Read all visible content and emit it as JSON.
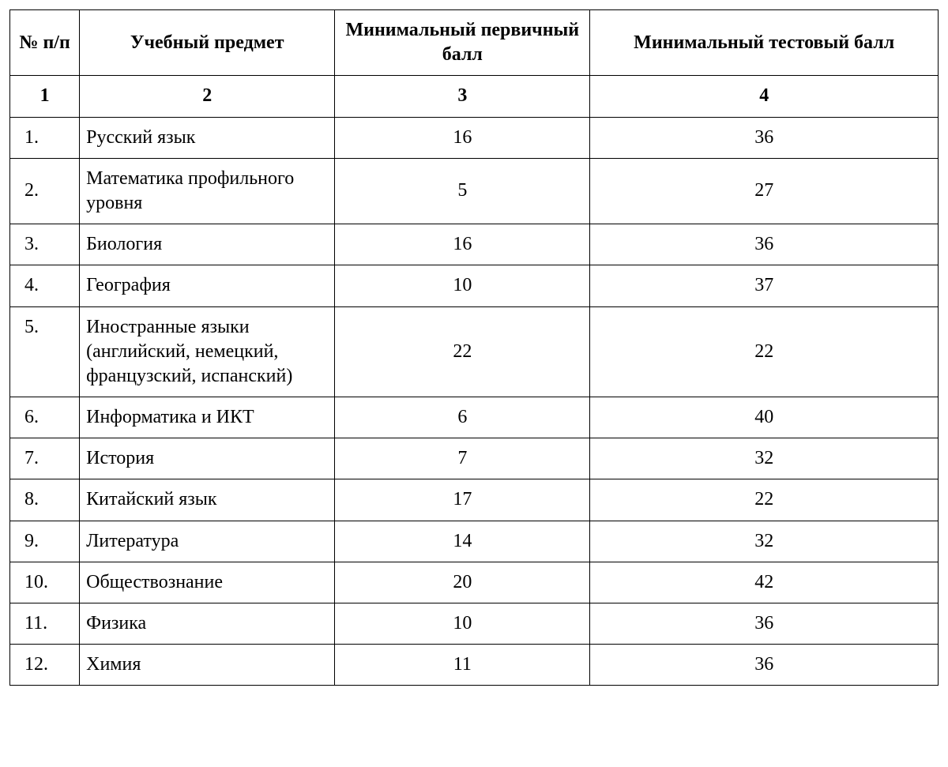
{
  "table": {
    "type": "table",
    "background_color": "#ffffff",
    "border_color": "#000000",
    "text_color": "#000000",
    "font_family": "Times New Roman",
    "header_fontsize_pt": 18,
    "body_fontsize_pt": 18,
    "columns": [
      {
        "key": "num",
        "label": "№ п/п",
        "align": "left",
        "width_pct": 7.5
      },
      {
        "key": "subject",
        "label": "Учебный предмет",
        "align": "left",
        "width_pct": 27.5
      },
      {
        "key": "primary_score",
        "label": "Минимальный первичный балл",
        "align": "center",
        "width_pct": 27.5
      },
      {
        "key": "test_score",
        "label": "Минимальный тестовый балл",
        "align": "center",
        "width_pct": 37.5
      }
    ],
    "subheader": [
      "1",
      "2",
      "3",
      "4"
    ],
    "rows": [
      {
        "num": "1.",
        "subject": "Русский язык",
        "primary_score": "16",
        "test_score": "36"
      },
      {
        "num": "2.",
        "subject": "Математика профильного уровня",
        "primary_score": "5",
        "test_score": "27"
      },
      {
        "num": "3.",
        "subject": "Биология",
        "primary_score": "16",
        "test_score": "36"
      },
      {
        "num": "4.",
        "subject": "География",
        "primary_score": "10",
        "test_score": "37"
      },
      {
        "num": "5.",
        "subject": "Иностранные языки (английский, немецкий, французский, испанский)",
        "primary_score": "22",
        "test_score": "22"
      },
      {
        "num": "6.",
        "subject": "Информатика и ИКТ",
        "primary_score": "6",
        "test_score": "40"
      },
      {
        "num": "7.",
        "subject": "История",
        "primary_score": "7",
        "test_score": "32"
      },
      {
        "num": "8.",
        "subject": "Китайский язык",
        "primary_score": "17",
        "test_score": "22"
      },
      {
        "num": "9.",
        "subject": "Литература",
        "primary_score": "14",
        "test_score": "32"
      },
      {
        "num": "10.",
        "subject": "Обществознание",
        "primary_score": "20",
        "test_score": "42"
      },
      {
        "num": "11.",
        "subject": "Физика",
        "primary_score": "10",
        "test_score": "36"
      },
      {
        "num": "12.",
        "subject": "Химия",
        "primary_score": "11",
        "test_score": "36"
      }
    ]
  }
}
